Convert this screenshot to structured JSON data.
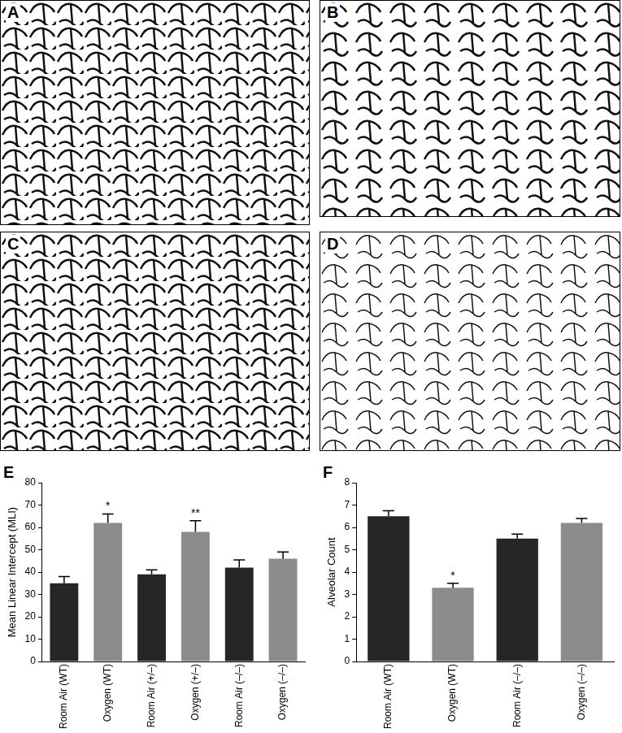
{
  "panels": [
    "A",
    "B",
    "C",
    "D"
  ],
  "chart_data": [
    {
      "panel_label": "E",
      "type": "bar",
      "y_label": "Mean Linear Intercept (MLI)",
      "categories": [
        "Room Air (WT)",
        "Oxygen (WT)",
        "Room Air (+/–)",
        "Oxygen (+/–)",
        "Room Air (–/–)",
        "Oxygen (–/–)"
      ],
      "values": [
        35,
        62,
        39,
        58,
        42,
        46
      ],
      "errors": [
        3,
        4,
        2,
        5,
        3.5,
        3
      ],
      "colors": [
        "#262626",
        "#8c8c8c",
        "#262626",
        "#8c8c8c",
        "#262626",
        "#8c8c8c"
      ],
      "significance": [
        null,
        "*",
        null,
        "**",
        null,
        null
      ],
      "ylim": [
        0,
        80
      ],
      "yticks": [
        0,
        10,
        20,
        30,
        40,
        50,
        60,
        70,
        80
      ],
      "grid": false
    },
    {
      "panel_label": "F",
      "type": "bar",
      "y_label": "Alveolar Count",
      "categories": [
        "Room Air (WT)",
        "Oxygen (WT)",
        "Room Air (–/–)",
        "Oxygen (–/–)"
      ],
      "values": [
        6.5,
        3.3,
        5.5,
        6.2
      ],
      "errors": [
        0.25,
        0.2,
        0.2,
        0.2
      ],
      "colors": [
        "#262626",
        "#8c8c8c",
        "#262626",
        "#8c8c8c"
      ],
      "significance": [
        null,
        "*",
        null,
        null
      ],
      "ylim": [
        0,
        8
      ],
      "yticks": [
        0,
        1,
        2,
        3,
        4,
        5,
        6,
        7,
        8
      ],
      "grid": false
    }
  ]
}
